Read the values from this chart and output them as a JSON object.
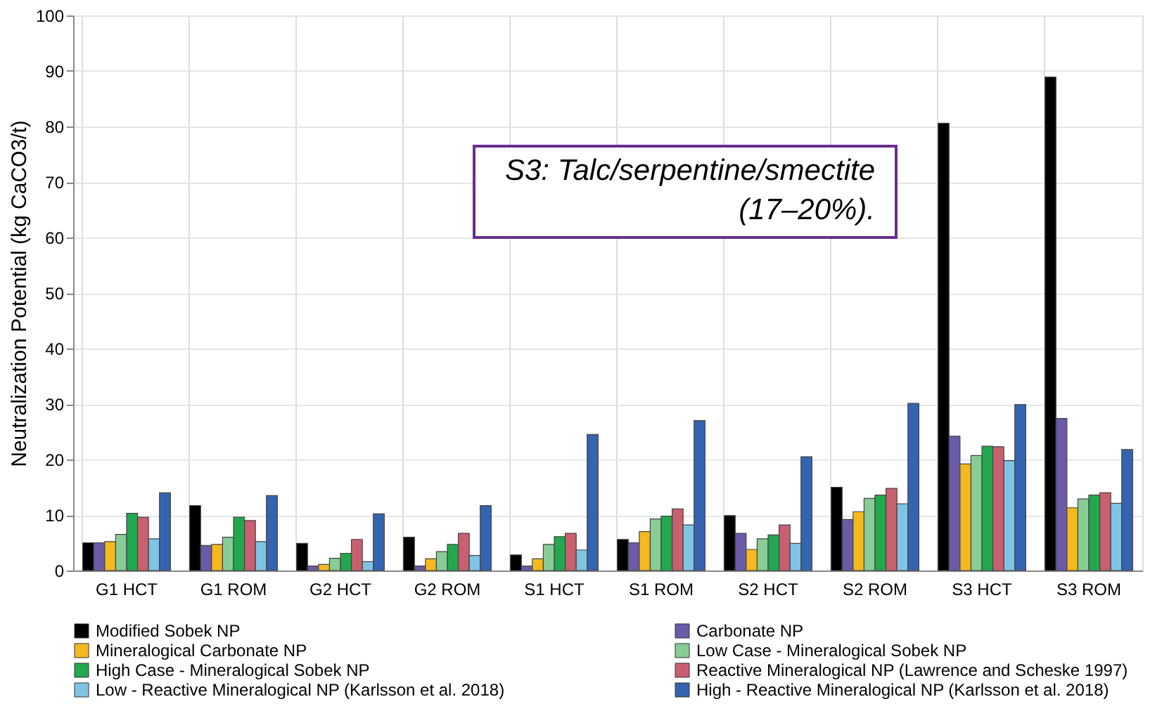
{
  "chart_data": {
    "type": "bar",
    "ylabel": "Neutralization Potential (kg CaCO3/t)",
    "categories": [
      "G1 HCT",
      "G1 ROM",
      "G2 HCT",
      "G2 ROM",
      "S1 HCT",
      "S1 ROM",
      "S2 HCT",
      "S2 ROM",
      "S3 HCT",
      "S3 ROM"
    ],
    "series": [
      {
        "name": "Modified Sobek NP",
        "color": "#000000",
        "values": [
          5,
          11.7,
          4.9,
          6,
          2.8,
          5.6,
          9.9,
          15,
          80.6,
          88.9
        ]
      },
      {
        "name": "Carbonate NP",
        "color": "#6a5aa8",
        "values": [
          5,
          4.5,
          0.8,
          0.8,
          0.8,
          5,
          6.7,
          9.2,
          24.2,
          27.4
        ]
      },
      {
        "name": "Mineralogical Carbonate NP",
        "color": "#f5b920",
        "values": [
          5.2,
          4.7,
          1.1,
          2.1,
          2.1,
          7,
          3.8,
          10.6,
          19.2,
          11.3
        ]
      },
      {
        "name": "Low Case - Mineralogical Sobek NP",
        "color": "#88cc96",
        "values": [
          6.5,
          6,
          2.2,
          3.4,
          4.7,
          9.3,
          5.7,
          13,
          20.7,
          12.9
        ]
      },
      {
        "name": "High Case - Mineralogical Sobek NP",
        "color": "#22a84f",
        "values": [
          10.3,
          9.6,
          3.1,
          4.7,
          6.1,
          9.8,
          6.4,
          13.6,
          22.4,
          13.6
        ]
      },
      {
        "name": "Reactive Mineralogical NP (Lawrence and Scheske 1997)",
        "color": "#c86070",
        "values": [
          9.6,
          9,
          5.6,
          6.7,
          6.7,
          11.1,
          8.2,
          14.8,
          22.3,
          14
        ]
      },
      {
        "name": "Low - Reactive Mineralogical NP (Karlsson et al. 2018)",
        "color": "#80c4e4",
        "values": [
          5.7,
          5.2,
          1.6,
          2.7,
          3.7,
          8.2,
          4.9,
          12,
          19.8,
          12.1
        ]
      },
      {
        "name": "High - Reactive Mineralogical NP (Karlsson et al. 2018)",
        "color": "#3464b0",
        "values": [
          14,
          13.5,
          10.2,
          11.7,
          24.5,
          27,
          20.5,
          30.1,
          29.9,
          21.8
        ]
      }
    ],
    "ylim": [
      0,
      100
    ],
    "yticks": [
      0,
      10,
      20,
      30,
      40,
      50,
      60,
      70,
      80,
      90,
      100
    ],
    "grid": true,
    "legend": "bottom",
    "annotations": [
      "S3:  Talc/serpentine/smectite\n(17–20%)."
    ]
  }
}
